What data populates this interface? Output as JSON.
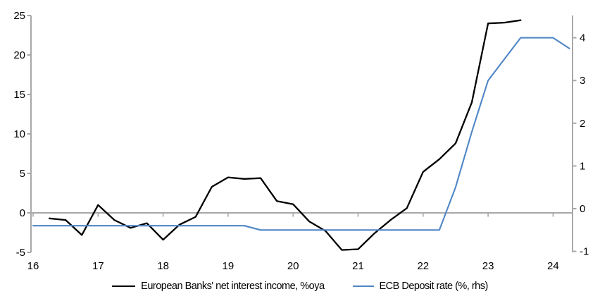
{
  "chart_data": {
    "type": "line",
    "title": "",
    "grid": false,
    "zero_line": true,
    "legend_position": "bottom",
    "x_axis": {
      "ticks": [
        16,
        17,
        18,
        19,
        20,
        21,
        22,
        23,
        24
      ],
      "min": 16,
      "max": 24.3
    },
    "left_axis": {
      "ticks": [
        -5,
        0,
        5,
        10,
        15,
        20,
        25
      ],
      "min": -5,
      "max": 25
    },
    "right_axis": {
      "ticks": [
        -1,
        0,
        1,
        2,
        3,
        4
      ],
      "min": -1,
      "max": 4.5
    },
    "series": [
      {
        "name": "European Banks' net interest income, %oya",
        "axis": "left",
        "color": "#000000",
        "line_width": 2.3,
        "x": [
          16.25,
          16.5,
          16.75,
          17,
          17.25,
          17.5,
          17.75,
          18,
          18.25,
          18.5,
          18.75,
          19,
          19.25,
          19.5,
          19.75,
          20,
          20.25,
          20.5,
          20.75,
          21,
          21.25,
          21.5,
          21.75,
          22,
          22.25,
          22.5,
          22.75,
          23,
          23.25,
          23.5
        ],
        "values": [
          -0.7,
          -0.9,
          -2.8,
          1.0,
          -0.9,
          -1.9,
          -1.3,
          -3.4,
          -1.5,
          -0.5,
          3.3,
          4.5,
          4.3,
          4.4,
          1.5,
          1.1,
          -1.1,
          -2.3,
          -4.7,
          -4.6,
          -2.6,
          -0.9,
          0.6,
          5.2,
          6.8,
          8.8,
          14.0,
          24.0,
          24.1,
          24.4
        ]
      },
      {
        "name": "ECB Deposit rate (%, rhs)",
        "axis": "right",
        "color": "#4f86c6",
        "line_width": 2.1,
        "x": [
          16,
          16.25,
          16.5,
          16.75,
          17,
          17.25,
          17.5,
          17.75,
          18,
          18.25,
          18.5,
          18.75,
          19,
          19.25,
          19.5,
          19.75,
          20,
          20.25,
          20.5,
          20.75,
          21,
          21.25,
          21.5,
          21.75,
          22,
          22.25,
          22.5,
          22.75,
          23,
          23.25,
          23.5,
          23.75,
          24,
          24.25
        ],
        "values": [
          -0.4,
          -0.4,
          -0.4,
          -0.4,
          -0.4,
          -0.4,
          -0.4,
          -0.4,
          -0.4,
          -0.4,
          -0.4,
          -0.4,
          -0.4,
          -0.4,
          -0.5,
          -0.5,
          -0.5,
          -0.5,
          -0.5,
          -0.5,
          -0.5,
          -0.5,
          -0.5,
          -0.5,
          -0.5,
          -0.5,
          0.5,
          1.8,
          3.0,
          3.5,
          4.0,
          4.0,
          4.0,
          3.75
        ]
      }
    ]
  },
  "colors": {
    "axis": "#a8a8a8",
    "text": "#000000",
    "series1": "#000000",
    "series2": "#4f86c6"
  }
}
